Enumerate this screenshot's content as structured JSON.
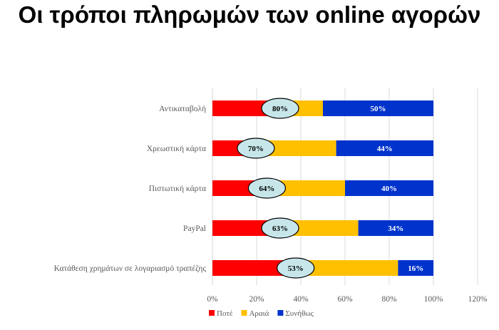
{
  "title": "Οι τρόποι πληρωμών των online αγορών",
  "chart_data": {
    "type": "bar",
    "orientation": "horizontal",
    "stacked": "percent",
    "categories": [
      "Αντικαταβολή",
      "Χρεωστική κάρτα",
      "Πιστωτική κάρτα",
      "PayPal",
      "Κατάθεση χρημάτων σε λογαριασμό τραπέζης"
    ],
    "series": [
      {
        "name": "Ποτέ",
        "color": "#ff0000",
        "values": [
          30,
          19,
          24,
          30,
          37
        ]
      },
      {
        "name": "Αραιά",
        "color": "#ffc000",
        "values": [
          20,
          37,
          36,
          36,
          47
        ]
      },
      {
        "name": "Συνήθως",
        "color": "#0033cc",
        "values": [
          50,
          44,
          40,
          34,
          16
        ]
      }
    ],
    "callouts": [
      "80%",
      "70%",
      "64%",
      "63%",
      "53%"
    ],
    "callout_color": "#c7e6ea",
    "series_labels": [
      "50%",
      "44%",
      "40%",
      "34%",
      "16%"
    ],
    "xlim": [
      0,
      120
    ],
    "xticks": [
      "0%",
      "20%",
      "40%",
      "60%",
      "80%",
      "100%",
      "120%"
    ],
    "grid": true,
    "legend_position": "bottom"
  }
}
